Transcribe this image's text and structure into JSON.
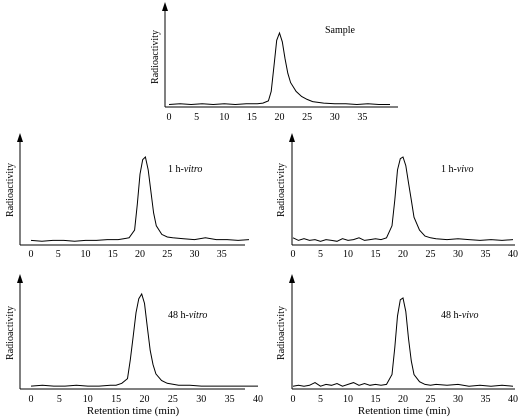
{
  "chart_data": [
    {
      "type": "line",
      "title_parts": [
        {
          "text": "Sample",
          "italic": false
        }
      ],
      "ylabel": "Radioactivity",
      "xlabel": "",
      "xlim": [
        0,
        40
      ],
      "xticks": [
        "0",
        "5",
        "10",
        "15",
        "20",
        "25",
        "30",
        "35"
      ],
      "series": [
        {
          "x": [
            0,
            2,
            4,
            6,
            8,
            10,
            12,
            14,
            16,
            17,
            18,
            18.5,
            19,
            19.5,
            20,
            20.5,
            21,
            21.5,
            22,
            23,
            24,
            25,
            26,
            28,
            30,
            32,
            34,
            36,
            38,
            40
          ],
          "y": [
            0.02,
            0.03,
            0.02,
            0.03,
            0.02,
            0.03,
            0.02,
            0.03,
            0.03,
            0.04,
            0.07,
            0.2,
            0.55,
            0.9,
            1.0,
            0.88,
            0.65,
            0.45,
            0.32,
            0.2,
            0.13,
            0.09,
            0.06,
            0.04,
            0.03,
            0.03,
            0.02,
            0.03,
            0.02,
            0.02
          ]
        }
      ]
    },
    {
      "type": "line",
      "title_parts": [
        {
          "text": "1 h-",
          "italic": false
        },
        {
          "text": "vitro",
          "italic": true
        }
      ],
      "ylabel": "Radioactivity",
      "xlabel": "",
      "xlim": [
        0,
        40
      ],
      "xticks": [
        "0",
        "5",
        "10",
        "15",
        "20",
        "25",
        "30",
        "35"
      ],
      "series": [
        {
          "x": [
            0,
            2,
            4,
            6,
            8,
            10,
            12,
            14,
            16,
            17,
            18,
            19,
            19.5,
            20,
            20.5,
            21,
            21.5,
            22,
            22.5,
            23,
            24,
            25,
            26,
            28,
            30,
            32,
            34,
            36,
            38,
            40
          ],
          "y": [
            0.03,
            0.02,
            0.03,
            0.03,
            0.02,
            0.03,
            0.03,
            0.04,
            0.04,
            0.05,
            0.06,
            0.15,
            0.45,
            0.8,
            0.97,
            1.0,
            0.85,
            0.6,
            0.35,
            0.2,
            0.1,
            0.07,
            0.06,
            0.05,
            0.04,
            0.06,
            0.04,
            0.04,
            0.03,
            0.04
          ]
        }
      ]
    },
    {
      "type": "line",
      "title_parts": [
        {
          "text": "1 h-",
          "italic": false
        },
        {
          "text": "vivo",
          "italic": true
        }
      ],
      "ylabel": "Radioactivity",
      "xlabel": "",
      "xlim": [
        0,
        40
      ],
      "xticks": [
        "0",
        "5",
        "10",
        "15",
        "20",
        "25",
        "30",
        "35",
        "40"
      ],
      "series": [
        {
          "x": [
            0,
            1,
            2,
            3,
            4,
            5,
            6,
            7,
            8,
            9,
            10,
            11,
            12,
            13,
            14,
            15,
            16,
            17,
            18,
            18.5,
            19,
            19.5,
            20,
            20.5,
            21,
            21.5,
            22,
            23,
            24,
            25,
            26,
            28,
            30,
            32,
            34,
            36,
            38,
            40
          ],
          "y": [
            0.06,
            0.03,
            0.05,
            0.03,
            0.04,
            0.02,
            0.04,
            0.03,
            0.02,
            0.05,
            0.03,
            0.04,
            0.06,
            0.03,
            0.04,
            0.05,
            0.04,
            0.06,
            0.2,
            0.5,
            0.85,
            0.98,
            1.0,
            0.9,
            0.7,
            0.5,
            0.3,
            0.15,
            0.08,
            0.06,
            0.05,
            0.04,
            0.05,
            0.04,
            0.03,
            0.04,
            0.03,
            0.04
          ]
        }
      ]
    },
    {
      "type": "line",
      "title_parts": [
        {
          "text": "48 h-",
          "italic": false
        },
        {
          "text": "vitro",
          "italic": true
        }
      ],
      "ylabel": "Radioactivity",
      "xlabel": "",
      "xlim": [
        0,
        40
      ],
      "xticks": [
        "0",
        "5",
        "10",
        "15",
        "20",
        "25",
        "30",
        "35",
        "40"
      ],
      "series": [
        {
          "x": [
            0,
            2,
            4,
            6,
            8,
            10,
            12,
            14,
            15,
            16,
            17,
            17.5,
            18,
            18.5,
            19,
            19.5,
            20,
            20.5,
            21,
            21.5,
            22,
            23,
            24,
            25,
            26,
            28,
            30,
            32,
            34,
            36,
            38,
            40
          ],
          "y": [
            0.02,
            0.03,
            0.02,
            0.02,
            0.03,
            0.02,
            0.02,
            0.03,
            0.03,
            0.05,
            0.1,
            0.3,
            0.55,
            0.8,
            0.95,
            1.0,
            0.9,
            0.65,
            0.4,
            0.25,
            0.15,
            0.08,
            0.05,
            0.04,
            0.03,
            0.03,
            0.02,
            0.02,
            0.02,
            0.02,
            0.02,
            0.02
          ]
        }
      ]
    },
    {
      "type": "line",
      "title_parts": [
        {
          "text": "48 h-",
          "italic": false
        },
        {
          "text": "vivo",
          "italic": true
        }
      ],
      "ylabel": "Radioactivity",
      "xlabel": "Retention time (min)",
      "xlim": [
        0,
        40
      ],
      "xticks": [
        "0",
        "5",
        "10",
        "15",
        "20",
        "25",
        "30",
        "35",
        "40"
      ],
      "series": [
        {
          "x": [
            0,
            1,
            2,
            3,
            4,
            5,
            6,
            7,
            8,
            9,
            10,
            11,
            12,
            13,
            14,
            15,
            16,
            17,
            18,
            18.5,
            19,
            19.5,
            20,
            20.5,
            21,
            21.5,
            22,
            23,
            24,
            25,
            26,
            28,
            30,
            32,
            34,
            36,
            38,
            40
          ],
          "y": [
            0.02,
            0.03,
            0.02,
            0.03,
            0.06,
            0.02,
            0.04,
            0.03,
            0.05,
            0.02,
            0.04,
            0.06,
            0.03,
            0.05,
            0.03,
            0.04,
            0.03,
            0.04,
            0.15,
            0.45,
            0.8,
            0.98,
            1.0,
            0.85,
            0.55,
            0.3,
            0.15,
            0.07,
            0.04,
            0.03,
            0.04,
            0.03,
            0.04,
            0.02,
            0.03,
            0.02,
            0.03,
            0.02
          ]
        }
      ]
    }
  ],
  "shared_xlabel_left": "Retention time (min)"
}
